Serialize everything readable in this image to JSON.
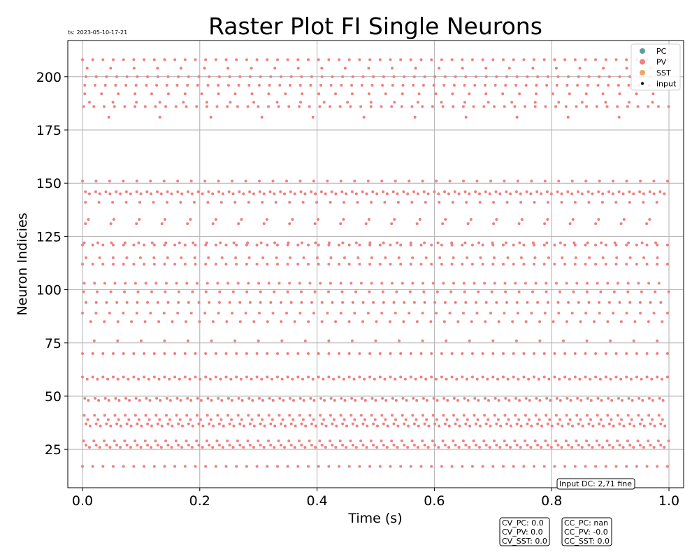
{
  "colors": {
    "PC": "#5f9ea0",
    "PV": "#f08080",
    "SST": "#f4a460",
    "input": "#000000",
    "grid": "#b0b0b0"
  },
  "timestamp": "ts: 2023-05-10-17-21",
  "chart_data": {
    "type": "scatter",
    "title": "Raster Plot FI Single Neurons",
    "xlabel": "Time (s)",
    "ylabel": "Neuron Indicies",
    "xlim": [
      -0.025,
      1.025
    ],
    "ylim": [
      7,
      217
    ],
    "xticks": [
      0.0,
      0.2,
      0.4,
      0.6,
      0.8,
      1.0
    ],
    "xtick_labels": [
      "0.0",
      "0.2",
      "0.4",
      "0.6",
      "0.8",
      "1.0"
    ],
    "yticks": [
      25,
      50,
      75,
      100,
      125,
      150,
      175,
      200
    ],
    "ytick_labels": [
      "25",
      "50",
      "75",
      "100",
      "125",
      "150",
      "175",
      "200"
    ],
    "grid": true,
    "legend_position": "top-right",
    "legend": [
      {
        "name": "PC",
        "color": "#5f9ea0"
      },
      {
        "name": "PV",
        "color": "#f08080"
      },
      {
        "name": "SST",
        "color": "#f4a460"
      },
      {
        "name": "input",
        "color": "#000000"
      }
    ],
    "series": [
      {
        "name": "PV",
        "color": "#f08080",
        "neurons": [
          {
            "y": 208,
            "period": 0.0175,
            "offset": 0.0
          },
          {
            "y": 204,
            "period": 0.04,
            "offset": 0.008
          },
          {
            "y": 200,
            "period": 0.0175,
            "offset": 0.006
          },
          {
            "y": 196,
            "period": 0.0175,
            "offset": 0.004
          },
          {
            "y": 192,
            "period": 0.0285,
            "offset": 0.004
          },
          {
            "y": 188,
            "period": 0.04,
            "offset": 0.012
          },
          {
            "y": 186,
            "period": 0.0175,
            "offset": 0.002
          },
          {
            "y": 181,
            "period": 0.087,
            "offset": 0.045
          },
          {
            "y": 151,
            "period": 0.0232,
            "offset": 0.0
          },
          {
            "y": 146,
            "period": 0.0175,
            "offset": 0.005
          },
          {
            "y": 145,
            "period": 0.0175,
            "offset": 0.012
          },
          {
            "y": 141,
            "period": 0.0232,
            "offset": 0.005
          },
          {
            "y": 133,
            "period": 0.0435,
            "offset": 0.01
          },
          {
            "y": 131,
            "period": 0.0435,
            "offset": 0.005
          },
          {
            "y": 122,
            "period": 0.0232,
            "offset": 0.003
          },
          {
            "y": 121,
            "period": 0.0175,
            "offset": 0.0
          },
          {
            "y": 115,
            "period": 0.0232,
            "offset": 0.006
          },
          {
            "y": 112,
            "period": 0.0175,
            "offset": 0.0
          },
          {
            "y": 103,
            "period": 0.0175,
            "offset": 0.003
          },
          {
            "y": 99,
            "period": 0.0232,
            "offset": 0.002
          },
          {
            "y": 94,
            "period": 0.0175,
            "offset": 0.006
          },
          {
            "y": 89,
            "period": 0.0232,
            "offset": 0.0
          },
          {
            "y": 85,
            "period": 0.0232,
            "offset": 0.014
          },
          {
            "y": 76,
            "period": 0.04,
            "offset": 0.02
          },
          {
            "y": 70,
            "period": 0.0175,
            "offset": 0.0
          },
          {
            "y": 59,
            "period": 0.0175,
            "offset": 0.0
          },
          {
            "y": 58,
            "period": 0.0175,
            "offset": 0.008
          },
          {
            "y": 49,
            "period": 0.0175,
            "offset": 0.004
          },
          {
            "y": 48,
            "period": 0.0175,
            "offset": 0.01
          },
          {
            "y": 41,
            "period": 0.0175,
            "offset": 0.003
          },
          {
            "y": 39,
            "period": 0.0175,
            "offset": 0.009
          },
          {
            "y": 37,
            "period": 0.0175,
            "offset": 0.006
          },
          {
            "y": 36,
            "period": 0.0175,
            "offset": 0.013
          },
          {
            "y": 29,
            "period": 0.0175,
            "offset": 0.002
          },
          {
            "y": 27,
            "period": 0.0175,
            "offset": 0.006
          },
          {
            "y": 26,
            "period": 0.0175,
            "offset": 0.012
          },
          {
            "y": 17,
            "period": 0.0175,
            "offset": 0.0
          }
        ]
      }
    ]
  },
  "annotations": {
    "input_dc": "Input DC: 2,71 fine",
    "cv_box": [
      "CV_PC: 0.0",
      "CV_PV: 0.0",
      "CV_SST: 0.0"
    ],
    "cc_box": [
      "CC_PC: nan",
      "CC_PV: -0.0",
      "CC_SST: 0.0"
    ]
  }
}
